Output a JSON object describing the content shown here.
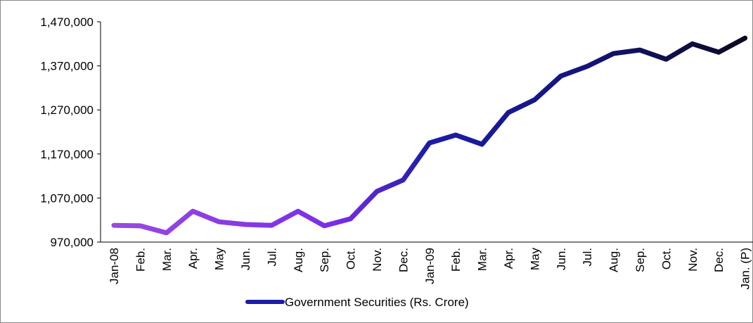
{
  "chart_data": {
    "type": "line",
    "categories": [
      "Jan-08",
      "Feb.",
      "Mar.",
      "Apr.",
      "May",
      "Jun.",
      "Jul.",
      "Aug.",
      "Sep.",
      "Oct.",
      "Nov.",
      "Dec.",
      "Jan-09",
      "Feb.",
      "Mar.",
      "Apr.",
      "May",
      "Jun.",
      "Jul.",
      "Aug.",
      "Sep.",
      "Oct.",
      "Nov.",
      "Dec.",
      "Jan. (P)"
    ],
    "series": [
      {
        "name": "Government Securities (Rs. Crore)",
        "color": "#1c1ca8",
        "values": [
          1008000,
          1007000,
          991000,
          1040000,
          1016000,
          1010000,
          1008000,
          1040000,
          1007000,
          1023000,
          1085000,
          1111000,
          1195000,
          1213000,
          1192000,
          1264000,
          1293000,
          1347000,
          1369000,
          1398000,
          1406000,
          1385000,
          1420000,
          1401000,
          1433000
        ]
      }
    ],
    "ylim": [
      970000,
      1470000
    ],
    "yticks": [
      {
        "value": 970000,
        "label": "970,000"
      },
      {
        "value": 1070000,
        "label": "1,070,000"
      },
      {
        "value": 1170000,
        "label": "1,170,000"
      },
      {
        "value": 1270000,
        "label": "1,270,000"
      },
      {
        "value": 1370000,
        "label": "1,370,000"
      },
      {
        "value": 1470000,
        "label": "1,470,000"
      }
    ],
    "grid": false,
    "legend": "bottom"
  }
}
